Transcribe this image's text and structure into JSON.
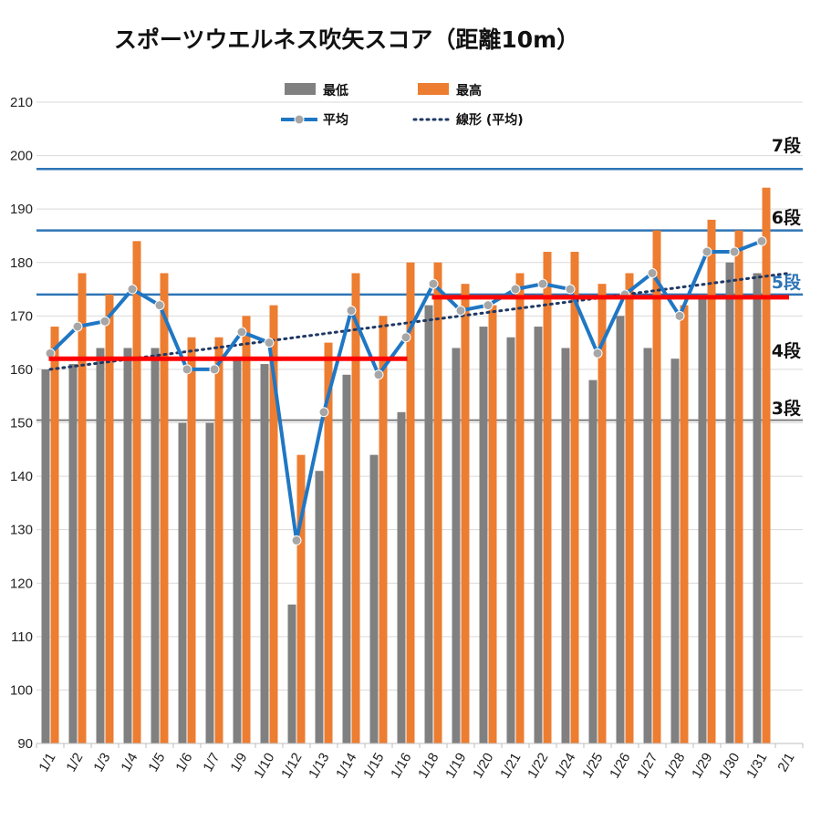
{
  "chart_data": {
    "type": "bar",
    "title": "スポーツウエルネス吹矢スコア（距離10m）",
    "categories": [
      "1/1",
      "1/2",
      "1/3",
      "1/4",
      "1/5",
      "1/6",
      "1/7",
      "1/9",
      "1/10",
      "1/12",
      "1/13",
      "1/14",
      "1/15",
      "1/16",
      "1/18",
      "1/19",
      "1/20",
      "1/21",
      "1/22",
      "1/24",
      "1/25",
      "1/26",
      "1/27",
      "1/28",
      "1/29",
      "1/30",
      "1/31",
      "2/1"
    ],
    "ylim": [
      90,
      210
    ],
    "yticks": [
      90,
      100,
      110,
      120,
      130,
      140,
      150,
      160,
      170,
      180,
      190,
      200,
      210
    ],
    "series": [
      {
        "name": "最低",
        "type": "bar",
        "color": "#808080",
        "values": [
          160,
          161,
          164,
          164,
          164,
          150,
          150,
          162,
          161,
          116,
          141,
          159,
          144,
          152,
          172,
          164,
          168,
          166,
          168,
          164,
          158,
          170,
          164,
          162,
          174,
          180,
          178,
          null
        ]
      },
      {
        "name": "最高",
        "type": "bar",
        "color": "#ED7D31",
        "values": [
          168,
          178,
          174,
          184,
          178,
          166,
          166,
          170,
          172,
          144,
          165,
          178,
          170,
          180,
          180,
          176,
          172,
          178,
          182,
          182,
          176,
          178,
          186,
          172,
          188,
          186,
          194,
          null
        ]
      },
      {
        "name": "平均",
        "type": "line",
        "color": "#1F77C4",
        "marker_color": "#A6A6A6",
        "values": [
          163,
          168,
          169,
          175,
          172,
          160,
          160,
          167,
          165,
          128,
          152,
          171,
          159,
          166,
          176,
          171,
          172,
          175,
          176,
          175,
          163,
          174,
          178,
          170,
          182,
          182,
          184,
          null
        ]
      },
      {
        "name": "線形 (平均)",
        "type": "trendline",
        "color": "#1F3864",
        "style": "dotted",
        "from": [
          0,
          160
        ],
        "to": [
          27,
          178
        ]
      }
    ],
    "reference_lines": [
      {
        "label": "7段",
        "y": 197.5,
        "color": "#2E75B6",
        "label_color": "#111111"
      },
      {
        "label": "6段",
        "y": 186,
        "color": "#2E75B6",
        "label_color": "#111111"
      },
      {
        "label": "5段",
        "y": 174,
        "color": "#2E75B6",
        "label_color": "#2E75B6"
      },
      {
        "label": "4段",
        "y": null,
        "color": null,
        "label_color": "#111111"
      },
      {
        "label": "3段",
        "y": 150.5,
        "color": "#7F7F7F",
        "label_color": "#111111"
      }
    ],
    "red_segments": [
      {
        "from_index": 0,
        "to_index": 13,
        "y": 162,
        "color": "#FF0000"
      },
      {
        "from_index": 14,
        "to_index": 27,
        "y": 173.5,
        "color": "#FF0000"
      }
    ],
    "legend": {
      "placement": "top-center",
      "items": [
        {
          "label": "最低",
          "kind": "bar",
          "color": "#808080"
        },
        {
          "label": "最高",
          "kind": "bar",
          "color": "#ED7D31"
        },
        {
          "label": "平均",
          "kind": "line",
          "color": "#1F77C4"
        },
        {
          "label": "線形 (平均)",
          "kind": "dotted",
          "color": "#1F3864"
        }
      ]
    },
    "grid": true
  }
}
